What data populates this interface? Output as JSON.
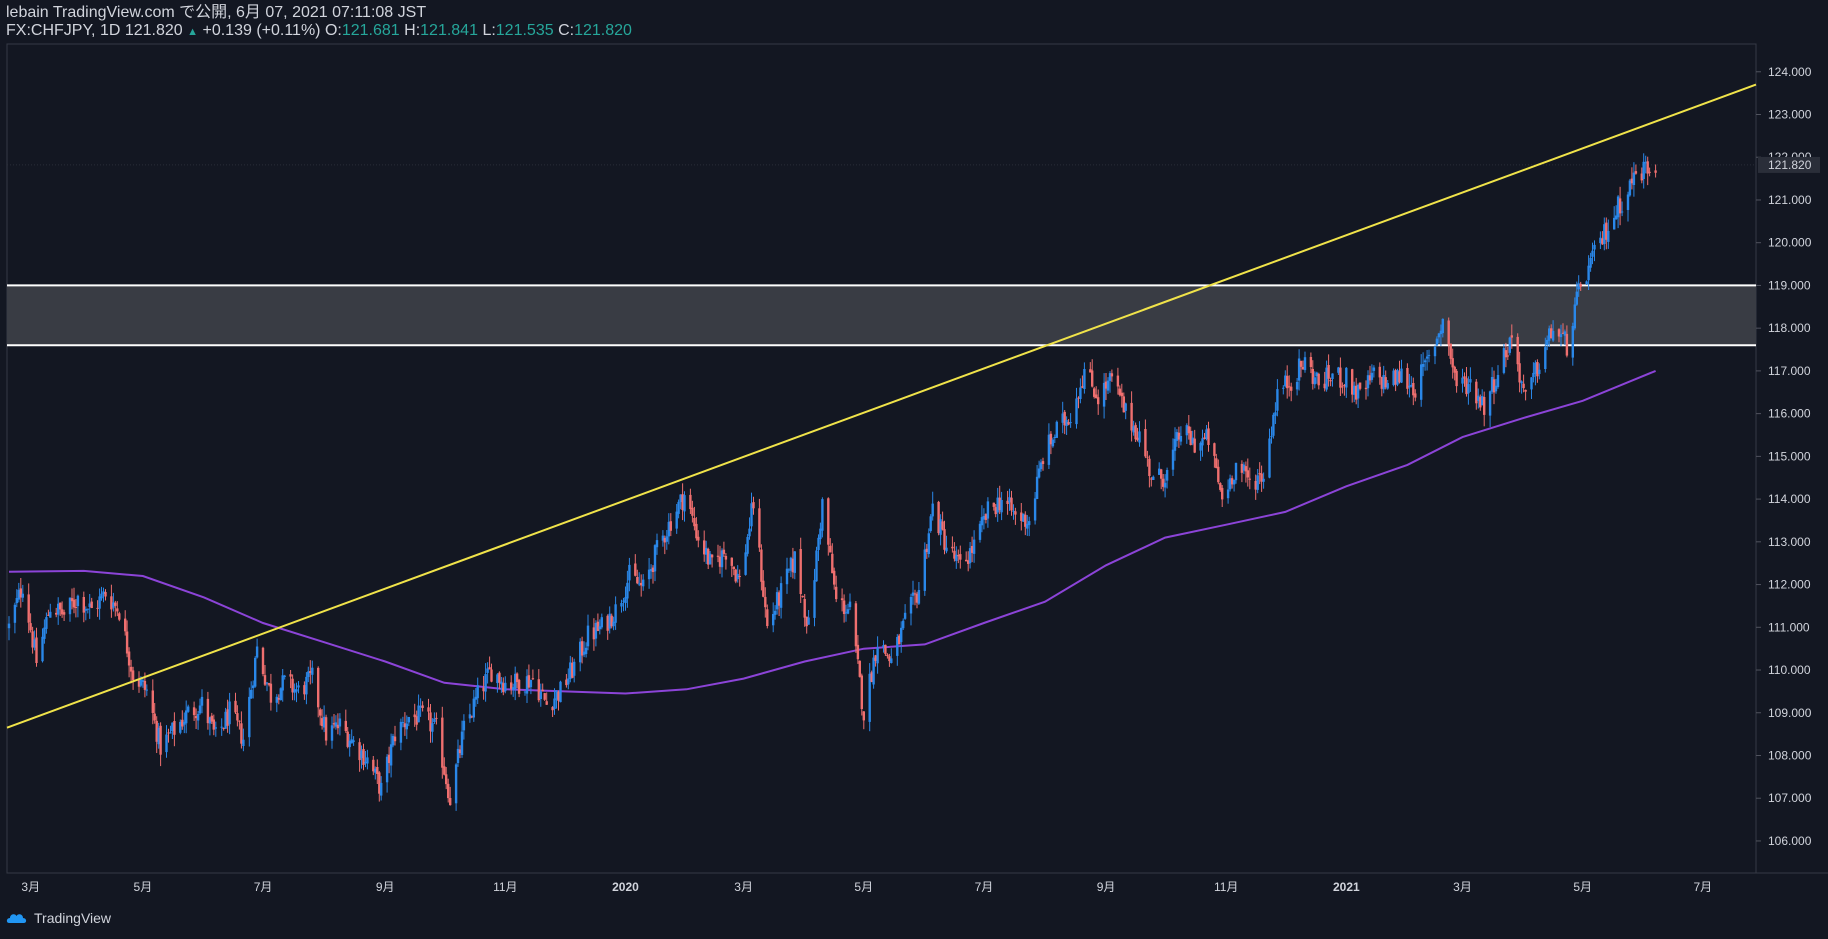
{
  "header": {
    "line1": "lebain TradingView.com で公開, 6月 07, 2021 07:11:08 JST",
    "symbol": "FX:CHFJPY, 1D 121.820",
    "arrow": "▲",
    "change": "+0.139 (+0.11%)",
    "o_label": "O:",
    "o_value": "121.681",
    "h_label": "H:",
    "h_value": "121.841",
    "l_label": "L:",
    "l_value": "121.535",
    "c_label": "C:",
    "c_value": "121.820"
  },
  "brand": {
    "name": "TradingView",
    "icon": "tradingview-cloud-icon"
  },
  "colors": {
    "background": "#131722",
    "up": "#2a87e8",
    "down": "#ef6f6f",
    "trendline": "#f0e34a",
    "ma": "#8c44d8",
    "zone_fill": "#393c44",
    "zone_border": "#ffffff",
    "price_label_bg": "#2a2e39",
    "change_text": "#26a69a"
  },
  "chart_data": {
    "type": "candlestick",
    "symbol": "FX:CHFJPY",
    "interval": "1D",
    "ylim": [
      105.25,
      124.65
    ],
    "y_ticks": [
      "106.000",
      "107.000",
      "108.000",
      "109.000",
      "110.000",
      "111.000",
      "112.000",
      "113.000",
      "114.000",
      "115.000",
      "116.000",
      "117.000",
      "118.000",
      "119.000",
      "120.000",
      "121.000",
      "122.000",
      "123.000",
      "124.000"
    ],
    "x_ticks": [
      {
        "label": "3月",
        "date": "2019-03-01"
      },
      {
        "label": "5月",
        "date": "2019-05-01"
      },
      {
        "label": "7月",
        "date": "2019-07-01"
      },
      {
        "label": "9月",
        "date": "2019-09-01"
      },
      {
        "label": "11月",
        "date": "2019-11-01"
      },
      {
        "label": "2020",
        "date": "2020-01-01"
      },
      {
        "label": "3月",
        "date": "2020-03-01"
      },
      {
        "label": "5月",
        "date": "2020-05-01"
      },
      {
        "label": "7月",
        "date": "2020-07-01"
      },
      {
        "label": "9月",
        "date": "2020-09-01"
      },
      {
        "label": "11月",
        "date": "2020-11-01"
      },
      {
        "label": "2021",
        "date": "2021-01-01"
      },
      {
        "label": "3月",
        "date": "2021-03-01"
      },
      {
        "label": "5月",
        "date": "2021-05-01"
      },
      {
        "label": "7月",
        "date": "2021-07-01"
      }
    ],
    "last_price": "121.820",
    "last_price_value": 121.82,
    "zone": {
      "low": 117.6,
      "high": 119.0
    },
    "trendline": [
      {
        "date": "2019-02-21",
        "price": 108.65
      },
      {
        "date": "2021-07-28",
        "price": 123.7
      }
    ],
    "close_path": [
      [
        "2019-02-22",
        111.0
      ],
      [
        "2019-03-01",
        112.0
      ],
      [
        "2019-03-08",
        110.2
      ],
      [
        "2019-03-15",
        111.5
      ],
      [
        "2019-03-22",
        111.3
      ],
      [
        "2019-03-29",
        111.7
      ],
      [
        "2019-04-05",
        111.4
      ],
      [
        "2019-04-12",
        111.8
      ],
      [
        "2019-04-19",
        111.4
      ],
      [
        "2019-04-26",
        109.9
      ],
      [
        "2019-05-03",
        109.5
      ],
      [
        "2019-05-10",
        108.2
      ],
      [
        "2019-05-17",
        108.6
      ],
      [
        "2019-05-24",
        109.0
      ],
      [
        "2019-05-31",
        109.2
      ],
      [
        "2019-06-07",
        108.4
      ],
      [
        "2019-06-14",
        109.0
      ],
      [
        "2019-06-21",
        108.4
      ],
      [
        "2019-06-28",
        110.5
      ],
      [
        "2019-07-05",
        109.4
      ],
      [
        "2019-07-12",
        109.7
      ],
      [
        "2019-07-19",
        109.5
      ],
      [
        "2019-07-26",
        109.8
      ],
      [
        "2019-08-02",
        108.5
      ],
      [
        "2019-08-09",
        108.7
      ],
      [
        "2019-08-16",
        108.3
      ],
      [
        "2019-08-23",
        107.9
      ],
      [
        "2019-08-30",
        107.2
      ],
      [
        "2019-09-06",
        108.5
      ],
      [
        "2019-09-13",
        108.9
      ],
      [
        "2019-09-20",
        108.9
      ],
      [
        "2019-09-27",
        108.6
      ],
      [
        "2019-10-04",
        107.0
      ],
      [
        "2019-10-11",
        108.6
      ],
      [
        "2019-10-18",
        109.4
      ],
      [
        "2019-10-25",
        110.0
      ],
      [
        "2019-11-01",
        109.7
      ],
      [
        "2019-11-08",
        109.7
      ],
      [
        "2019-11-15",
        109.8
      ],
      [
        "2019-11-22",
        109.2
      ],
      [
        "2019-11-29",
        109.5
      ],
      [
        "2019-12-06",
        110.1
      ],
      [
        "2019-12-13",
        110.8
      ],
      [
        "2019-12-20",
        111.0
      ],
      [
        "2019-12-27",
        111.4
      ],
      [
        "2020-01-03",
        112.2
      ],
      [
        "2020-01-10",
        111.9
      ],
      [
        "2020-01-17",
        112.8
      ],
      [
        "2020-01-24",
        113.5
      ],
      [
        "2020-01-31",
        114.1
      ],
      [
        "2020-02-07",
        113.1
      ],
      [
        "2020-02-14",
        112.4
      ],
      [
        "2020-02-21",
        112.8
      ],
      [
        "2020-02-28",
        112.1
      ],
      [
        "2020-03-06",
        113.9
      ],
      [
        "2020-03-13",
        111.0
      ],
      [
        "2020-03-20",
        111.8
      ],
      [
        "2020-03-27",
        112.6
      ],
      [
        "2020-04-03",
        111.0
      ],
      [
        "2020-04-10",
        113.9
      ],
      [
        "2020-04-17",
        111.6
      ],
      [
        "2020-04-24",
        111.4
      ],
      [
        "2020-05-01",
        109.0
      ],
      [
        "2020-05-08",
        110.7
      ],
      [
        "2020-05-15",
        110.2
      ],
      [
        "2020-05-22",
        111.1
      ],
      [
        "2020-05-29",
        111.9
      ],
      [
        "2020-06-05",
        113.8
      ],
      [
        "2020-06-12",
        112.9
      ],
      [
        "2020-06-19",
        112.4
      ],
      [
        "2020-06-26",
        112.9
      ],
      [
        "2020-07-03",
        113.7
      ],
      [
        "2020-07-10",
        114.0
      ],
      [
        "2020-07-17",
        113.6
      ],
      [
        "2020-07-24",
        113.5
      ],
      [
        "2020-07-31",
        115.0
      ],
      [
        "2020-08-07",
        115.6
      ],
      [
        "2020-08-14",
        116.0
      ],
      [
        "2020-08-21",
        117.0
      ],
      [
        "2020-08-28",
        116.4
      ],
      [
        "2020-09-04",
        116.8
      ],
      [
        "2020-09-11",
        116.0
      ],
      [
        "2020-09-18",
        115.5
      ],
      [
        "2020-09-25",
        114.4
      ],
      [
        "2020-10-02",
        114.6
      ],
      [
        "2020-10-09",
        115.6
      ],
      [
        "2020-10-16",
        115.3
      ],
      [
        "2020-10-23",
        115.4
      ],
      [
        "2020-10-30",
        114.0
      ],
      [
        "2020-11-06",
        114.8
      ],
      [
        "2020-11-13",
        114.4
      ],
      [
        "2020-11-20",
        114.6
      ],
      [
        "2020-11-27",
        116.5
      ],
      [
        "2020-12-04",
        116.8
      ],
      [
        "2020-12-11",
        117.2
      ],
      [
        "2020-12-18",
        116.7
      ],
      [
        "2020-12-25",
        116.9
      ],
      [
        "2021-01-01",
        116.8
      ],
      [
        "2021-01-08",
        116.4
      ],
      [
        "2021-01-15",
        116.9
      ],
      [
        "2021-01-22",
        116.7
      ],
      [
        "2021-01-29",
        116.9
      ],
      [
        "2021-02-05",
        116.6
      ],
      [
        "2021-02-12",
        117.3
      ],
      [
        "2021-02-19",
        118.2
      ],
      [
        "2021-02-26",
        116.7
      ],
      [
        "2021-03-05",
        116.7
      ],
      [
        "2021-03-12",
        116.2
      ],
      [
        "2021-03-19",
        117.0
      ],
      [
        "2021-03-26",
        117.8
      ],
      [
        "2021-04-02",
        116.3
      ],
      [
        "2021-04-09",
        117.2
      ],
      [
        "2021-04-16",
        118.0
      ],
      [
        "2021-04-23",
        117.6
      ],
      [
        "2021-04-30",
        119.0
      ],
      [
        "2021-05-07",
        119.7
      ],
      [
        "2021-05-14",
        120.4
      ],
      [
        "2021-05-21",
        121.0
      ],
      [
        "2021-05-28",
        121.6
      ],
      [
        "2021-06-04",
        121.8
      ],
      [
        "2021-06-07",
        121.82
      ]
    ],
    "ma_path": [
      [
        "2019-02-22",
        112.3
      ],
      [
        "2019-04-01",
        112.32
      ],
      [
        "2019-05-01",
        112.2
      ],
      [
        "2019-06-01",
        111.7
      ],
      [
        "2019-07-01",
        111.1
      ],
      [
        "2019-08-01",
        110.65
      ],
      [
        "2019-09-01",
        110.2
      ],
      [
        "2019-10-01",
        109.7
      ],
      [
        "2019-11-01",
        109.55
      ],
      [
        "2019-12-01",
        109.5
      ],
      [
        "2020-01-01",
        109.45
      ],
      [
        "2020-02-01",
        109.55
      ],
      [
        "2020-03-01",
        109.8
      ],
      [
        "2020-04-01",
        110.2
      ],
      [
        "2020-05-01",
        110.5
      ],
      [
        "2020-06-01",
        110.6
      ],
      [
        "2020-07-01",
        111.1
      ],
      [
        "2020-08-01",
        111.6
      ],
      [
        "2020-09-01",
        112.45
      ],
      [
        "2020-10-01",
        113.1
      ],
      [
        "2020-11-01",
        113.4
      ],
      [
        "2020-12-01",
        113.7
      ],
      [
        "2021-01-01",
        114.3
      ],
      [
        "2021-02-01",
        114.8
      ],
      [
        "2021-03-01",
        115.45
      ],
      [
        "2021-04-01",
        115.9
      ],
      [
        "2021-05-01",
        116.3
      ],
      [
        "2021-06-07",
        117.0
      ]
    ]
  }
}
